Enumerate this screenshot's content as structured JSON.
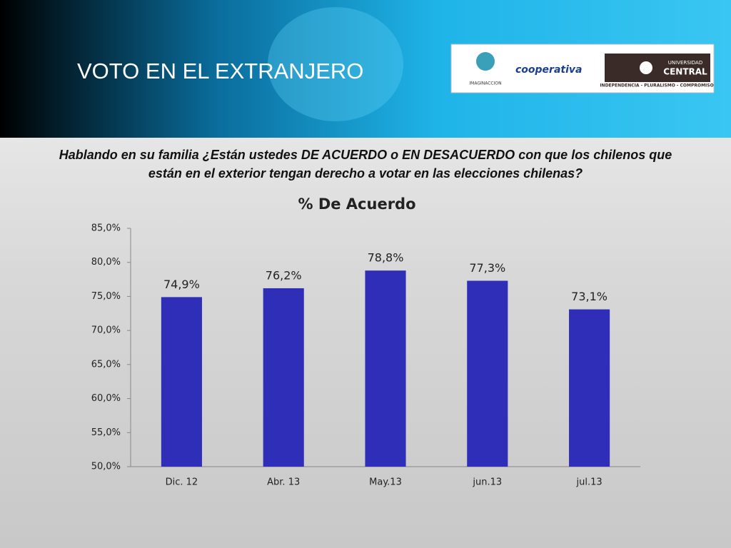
{
  "title": "VOTO EN EL EXTRANJERO",
  "question": [
    "Hablando en su familia ¿Están ustedes DE ACUERDO o EN DESACUERDO con que los chilenos que",
    "están en el exterior tengan derecho a votar en las elecciones chilenas?"
  ],
  "logos": [
    "IMAGINACCION",
    "cooperativa",
    "UNIVERSIDAD",
    "CENTRAL",
    "INDEPENDENCIA - PLURALISMO - COMPROMISO"
  ],
  "chart_data": {
    "type": "bar",
    "title": "% De Acuerdo",
    "categories": [
      "Dic. 12",
      "Abr. 13",
      "May.13",
      "jun.13",
      "jul.13"
    ],
    "values": [
      74.9,
      76.2,
      78.8,
      77.3,
      73.1
    ],
    "value_labels": [
      "74,9%",
      "76,2%",
      "78,8%",
      "77,3%",
      "73,1%"
    ],
    "color": "#2e2eb8",
    "ylim": [
      50,
      85
    ],
    "yticks": [
      {
        "value": 50,
        "label": "50,0%"
      },
      {
        "value": 55,
        "label": "55,0%"
      },
      {
        "value": 60,
        "label": "60,0%"
      },
      {
        "value": 65,
        "label": "65,0%"
      },
      {
        "value": 70,
        "label": "70,0%"
      },
      {
        "value": 75,
        "label": "75,0%"
      },
      {
        "value": 80,
        "label": "80,0%"
      },
      {
        "value": 85,
        "label": "85,0%"
      }
    ],
    "grid": false
  }
}
